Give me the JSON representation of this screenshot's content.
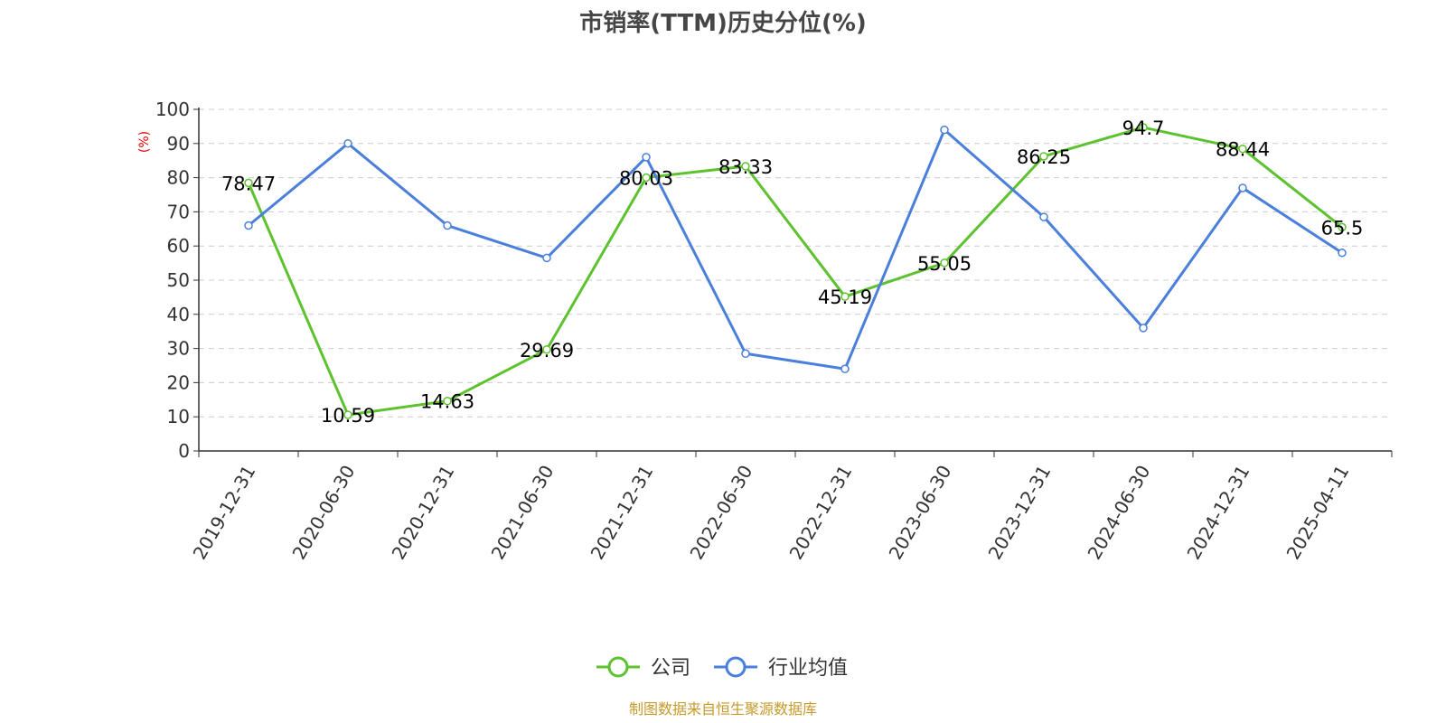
{
  "chart_data": {
    "type": "line",
    "title": "市销率(TTM)历史分位(%)",
    "ylabel": "(%)",
    "xlabel": "",
    "ylim": [
      0,
      100
    ],
    "yticks": [
      0,
      10,
      20,
      30,
      40,
      50,
      60,
      70,
      80,
      90,
      100
    ],
    "categories": [
      "2019-12-31",
      "2020-06-30",
      "2020-12-31",
      "2021-06-30",
      "2021-12-31",
      "2022-06-30",
      "2022-12-31",
      "2023-06-30",
      "2023-12-31",
      "2024-06-30",
      "2024-12-31",
      "2025-04-11"
    ],
    "grid": true,
    "legend_position": "bottom",
    "series": [
      {
        "name": "公司",
        "color": "#5cc22e",
        "values": [
          78.47,
          10.59,
          14.63,
          29.69,
          80.03,
          83.33,
          45.19,
          55.05,
          86.25,
          94.7,
          88.44,
          65.5
        ],
        "labels": [
          "78.47",
          "10.59",
          "14.63",
          "29.69",
          "80.03",
          "83.33",
          "45.19",
          "55.05",
          "86.25",
          "94.7",
          "88.44",
          "65.5"
        ]
      },
      {
        "name": "行业均值",
        "color": "#4a7fdc",
        "values": [
          66,
          90,
          66,
          56.5,
          86,
          28.5,
          24,
          94,
          68.5,
          36,
          77,
          58
        ]
      }
    ],
    "source": "制图数据来自恒生聚源数据库"
  }
}
